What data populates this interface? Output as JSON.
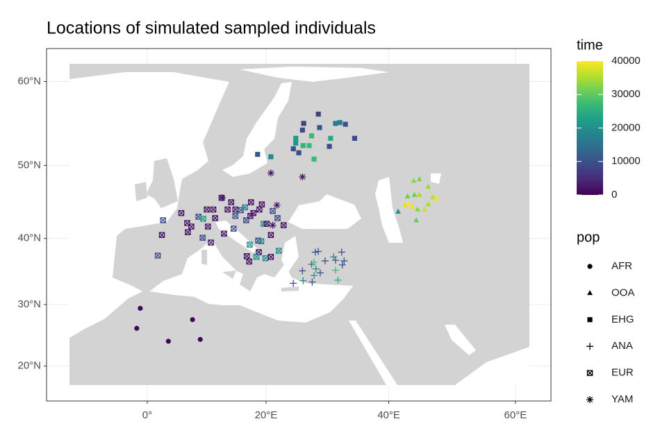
{
  "chart_data": {
    "type": "scatter",
    "title": "Locations of simulated sampled individuals",
    "xlim": [
      -17.5,
      65.5
    ],
    "ylim": [
      14.1,
      63.5
    ],
    "xticks": [
      {
        "value": 0,
        "label": "0°"
      },
      {
        "value": 20,
        "label": "20°E"
      },
      {
        "value": 40,
        "label": "40°E"
      },
      {
        "value": 60,
        "label": "60°E"
      }
    ],
    "yticks": [
      {
        "value": 20,
        "label": "20°N"
      },
      {
        "value": 30,
        "label": "30°N"
      },
      {
        "value": 40,
        "label": "40°N"
      },
      {
        "value": 50,
        "label": "50°N"
      },
      {
        "value": 60,
        "label": "60°N"
      }
    ],
    "grid": true,
    "color_legend": {
      "title": "time",
      "lim": [
        0,
        40000
      ],
      "ticks": [
        0,
        10000,
        20000,
        30000,
        40000
      ],
      "colorscale": [
        "#440154",
        "#482878",
        "#3e4989",
        "#31688e",
        "#26828e",
        "#1f9e89",
        "#35b779",
        "#6ece58",
        "#b5de2b",
        "#fde725"
      ]
    },
    "shape_legend_title": "pop",
    "series": [
      {
        "name": "AFR",
        "shape": "circle",
        "x": [
          -1.2,
          -1.8,
          7.7,
          3.6,
          9.0
        ],
        "y": [
          29.4,
          26.2,
          27.6,
          24.1,
          24.4
        ],
        "time": [
          500,
          500,
          500,
          500,
          500
        ]
      },
      {
        "name": "OOA",
        "shape": "triangle",
        "x": [
          41.5,
          43.0,
          44.0,
          44.9,
          46.3,
          44.1,
          44.9,
          43.1,
          43.8,
          42.6,
          47.0,
          47.6,
          46.3,
          45.7,
          44.6,
          44.4
        ],
        "y": [
          43.8,
          45.9,
          48.0,
          48.2,
          47.2,
          46.1,
          46.1,
          44.9,
          44.5,
          44.7,
          45.8,
          45.6,
          44.8,
          44.1,
          44.1,
          42.6
        ],
        "time": [
          20000,
          31000,
          33000,
          32000,
          34000,
          31000,
          35000,
          40000,
          39000,
          38000,
          36000,
          39000,
          35000,
          37000,
          33000,
          31000
        ]
      },
      {
        "name": "EHG",
        "shape": "square",
        "x": [
          28.6,
          26.2,
          26.0,
          28.8,
          31.4,
          32.1,
          33.0,
          34.5,
          24.9,
          27.5,
          24.9,
          26.1,
          27.1,
          30.6,
          30.4,
          24.5,
          25.4,
          20.8,
          18.6,
          27.9
        ],
        "y": [
          56.3,
          55.2,
          54.4,
          54.7,
          55.2,
          55.3,
          55.1,
          53.4,
          53.4,
          53.7,
          52.8,
          52.5,
          52.5,
          53.4,
          52.4,
          52.1,
          51.6,
          51.1,
          51.4,
          50.8
        ],
        "time": [
          8000,
          8000,
          9000,
          11000,
          17000,
          17000,
          10000,
          9000,
          22000,
          27000,
          21000,
          26000,
          27000,
          24000,
          9000,
          10000,
          9000,
          19000,
          11000,
          27000
        ]
      },
      {
        "name": "ANA",
        "shape": "plus",
        "x": [
          24.5,
          26.0,
          26.1,
          27.6,
          27.5,
          28.1,
          28.6,
          27.9,
          28.2,
          28.9,
          29.7,
          31.1,
          31.4,
          31.4,
          31.8,
          32.4,
          32.8,
          32.5,
          27.9
        ],
        "y": [
          33.3,
          35.2,
          33.7,
          33.5,
          36.2,
          38.0,
          38.1,
          36.5,
          35.5,
          34.9,
          36.7,
          37.3,
          36.8,
          35.3,
          33.8,
          38.0,
          36.7,
          36.1,
          34.5
        ],
        "time": [
          9000,
          10000,
          18000,
          9000,
          12000,
          10000,
          11000,
          28000,
          19000,
          10000,
          9000,
          18000,
          11000,
          27000,
          25000,
          10000,
          10000,
          9000,
          20000
        ]
      },
      {
        "name": "EUR",
        "shape": "crossed-square",
        "x": [
          1.8,
          2.5,
          2.7,
          5.8,
          6.8,
          7.5,
          6.9,
          8.7,
          9.5,
          10.1,
          11.2,
          11.5,
          13.6,
          14.2,
          14.9,
          14.9,
          15.8,
          16.5,
          12.6,
          16.7,
          17.4,
          17.9,
          17.5,
          18.9,
          19.3,
          19.6,
          20.1,
          21.1,
          21.9,
          22.9,
          17.3,
          18.7,
          19.2,
          20.8,
          22.1,
          16.8,
          17.2,
          18.8,
          18.4,
          19.9,
          20.8,
          9.4,
          10.8,
          10.3,
          13.0,
          14.6
        ],
        "y": [
          37.5,
          40.5,
          42.6,
          43.6,
          42.2,
          41.7,
          40.9,
          43.1,
          42.8,
          44.1,
          44.1,
          42.9,
          44.1,
          45.1,
          44.1,
          43.2,
          44.0,
          44.4,
          45.7,
          42.6,
          43.2,
          43.6,
          45.1,
          44.1,
          44.8,
          42.1,
          42.1,
          43.9,
          42.9,
          41.9,
          39.1,
          39.7,
          39.6,
          40.5,
          38.2,
          37.4,
          36.6,
          38.0,
          37.3,
          37.1,
          37.3,
          40.1,
          39.4,
          41.7,
          40.7,
          41.4
        ],
        "time": [
          10000,
          2000,
          9000,
          2000,
          2000,
          2000,
          2000,
          9000,
          22000,
          2000,
          2000,
          2000,
          2000,
          2000,
          2000,
          10000,
          10000,
          17000,
          2000,
          9000,
          2000,
          2000,
          2000,
          2000,
          2000,
          20000,
          2000,
          9000,
          9000,
          2000,
          20000,
          9000,
          18000,
          2000,
          20000,
          2000,
          2000,
          2000,
          20000,
          19000,
          2000,
          9000,
          2000,
          2000,
          2000,
          9000
        ]
      },
      {
        "name": "YAM",
        "shape": "asterisk",
        "x": [
          20.8,
          26.0,
          12.7,
          21.8,
          21.1
        ],
        "y": [
          49.0,
          48.5,
          45.7,
          44.7,
          41.9
        ],
        "time": [
          3000,
          3000,
          3000,
          3000,
          3000
        ]
      }
    ]
  }
}
